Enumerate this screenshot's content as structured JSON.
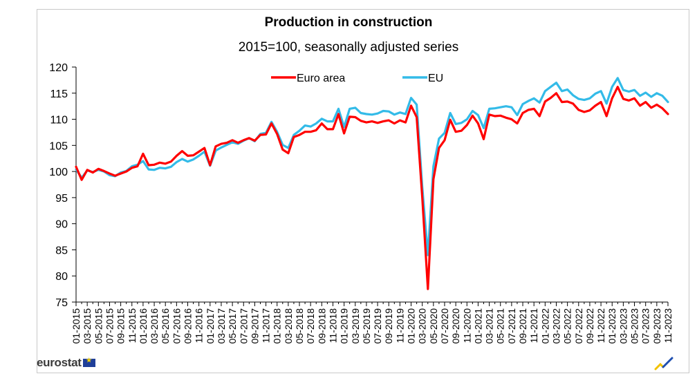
{
  "chart_data": {
    "type": "line",
    "title": "Production in construction",
    "subtitle": "2015=100, seasonally adjusted series",
    "xlabel": "",
    "ylabel": "",
    "ylim": [
      75,
      120
    ],
    "yticks": [
      75,
      80,
      85,
      90,
      95,
      100,
      105,
      110,
      115,
      120
    ],
    "xtick_labels": [
      "01-2015",
      "03-2015",
      "05-2015",
      "07-2015",
      "09-2015",
      "11-2015",
      "01-2016",
      "03-2016",
      "05-2016",
      "07-2016",
      "09-2016",
      "11-2016",
      "01-2017",
      "03-2017",
      "05-2017",
      "07-2017",
      "09-2017",
      "11-2017",
      "01-2018",
      "03-2018",
      "05-2018",
      "07-2018",
      "09-2018",
      "11-2018",
      "01-2019",
      "03-2019",
      "05-2019",
      "07-2019",
      "09-2019",
      "11-2019",
      "01-2020",
      "03-2020",
      "05-2020",
      "07-2020",
      "09-2020",
      "11-2020",
      "01-2021",
      "03-2021",
      "05-2021",
      "07-2021",
      "09-2021",
      "11-2021",
      "01-2022",
      "03-2022",
      "05-2022",
      "07-2022",
      "09-2022",
      "11-2022",
      "01-2023",
      "03-2023",
      "05-2023",
      "07-2023",
      "09-2023",
      "11-2023"
    ],
    "grid": false,
    "legend": "top-center",
    "series": [
      {
        "name": "Euro area",
        "color": "#ff0000",
        "values": [
          100.9,
          98.4,
          100.3,
          99.8,
          100.5,
          100.1,
          99.6,
          99.2,
          99.6,
          100.0,
          100.7,
          101.0,
          103.4,
          101.2,
          101.3,
          101.7,
          101.5,
          101.9,
          103.0,
          103.9,
          103.0,
          103.1,
          103.8,
          104.5,
          101.2,
          104.8,
          105.3,
          105.5,
          106.0,
          105.5,
          106.0,
          106.4,
          105.9,
          107.0,
          107.1,
          109.2,
          107.2,
          104.2,
          103.5,
          106.6,
          107.0,
          107.6,
          107.6,
          107.9,
          109.2,
          108.1,
          108.1,
          111.0,
          107.3,
          110.5,
          110.4,
          109.7,
          109.4,
          109.6,
          109.3,
          109.6,
          109.8,
          109.2,
          109.8,
          109.4,
          112.6,
          110.4,
          95.0,
          77.5,
          98.5,
          104.5,
          106.0,
          109.9,
          107.6,
          107.8,
          108.9,
          110.7,
          109.2,
          106.2,
          110.9,
          110.6,
          110.7,
          110.3,
          110.0,
          109.2,
          111.2,
          111.8,
          112.0,
          110.6,
          113.4,
          114.1,
          115.0,
          113.3,
          113.4,
          113.0,
          111.8,
          111.4,
          111.7,
          112.6,
          113.3,
          110.6,
          114.0,
          116.2,
          113.9,
          113.6,
          114.0,
          112.6,
          113.3,
          112.2,
          112.8,
          112.1,
          111.0
        ]
      },
      {
        "name": "EU",
        "color": "#33bbe8",
        "values": [
          100.4,
          98.8,
          100.2,
          99.9,
          100.3,
          100.0,
          99.3,
          99.1,
          99.8,
          100.1,
          101.0,
          101.3,
          102.0,
          100.4,
          100.3,
          100.7,
          100.6,
          100.9,
          101.8,
          102.4,
          101.9,
          102.3,
          103.0,
          103.8,
          101.1,
          104.0,
          104.6,
          105.1,
          105.6,
          105.3,
          105.9,
          106.4,
          105.8,
          107.2,
          107.4,
          109.5,
          107.6,
          105.1,
          104.5,
          107.0,
          107.8,
          108.8,
          108.6,
          109.2,
          110.1,
          109.6,
          109.6,
          112.0,
          108.5,
          112.0,
          112.2,
          111.2,
          111.0,
          110.9,
          111.1,
          111.6,
          111.5,
          110.9,
          111.3,
          111.0,
          114.1,
          112.8,
          97.0,
          84.0,
          101.0,
          106.3,
          107.4,
          111.2,
          109.1,
          109.3,
          110.0,
          111.6,
          110.8,
          108.3,
          112.0,
          112.1,
          112.3,
          112.5,
          112.3,
          110.8,
          112.9,
          113.5,
          114.0,
          113.2,
          115.4,
          116.2,
          117.0,
          115.4,
          115.7,
          114.6,
          113.9,
          113.7,
          114.0,
          114.9,
          115.4,
          113.0,
          116.2,
          117.9,
          115.6,
          115.3,
          115.6,
          114.5,
          115.1,
          114.3,
          115.0,
          114.5,
          113.3
        ]
      }
    ]
  },
  "branding": {
    "logo_text": "eurostat"
  }
}
